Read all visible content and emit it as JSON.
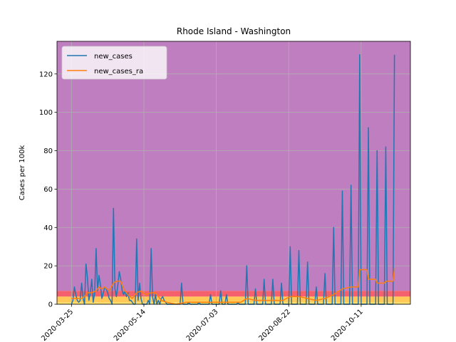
{
  "chart_data": {
    "type": "line",
    "title": "Rhode Island - Washington",
    "xlabel": "",
    "ylabel": "Cases per 100k",
    "x_type": "date",
    "xlim": [
      "2020-03-15",
      "2020-11-14"
    ],
    "ylim": [
      0,
      137
    ],
    "y_ticks": [
      0,
      20,
      40,
      60,
      80,
      100,
      120
    ],
    "x_ticks": [
      "2020-03-25",
      "2020-05-14",
      "2020-07-03",
      "2020-08-22",
      "2020-10-11"
    ],
    "grid": true,
    "legend_position": "top-left",
    "bands": [
      {
        "from": 0,
        "to": 1,
        "color": "#ffe066"
      },
      {
        "from": 1,
        "to": 4,
        "color": "#ffc857"
      },
      {
        "from": 4,
        "to": 7,
        "color": "#f4606c"
      },
      {
        "from": 7,
        "to": 137,
        "color": "#bf7ebf"
      }
    ],
    "series": [
      {
        "name": "new_cases",
        "color": "#1f77b4",
        "points": [
          [
            "2020-03-25",
            0
          ],
          [
            "2020-03-26",
            2
          ],
          [
            "2020-03-27",
            9
          ],
          [
            "2020-03-28",
            5
          ],
          [
            "2020-03-29",
            2
          ],
          [
            "2020-03-30",
            1
          ],
          [
            "2020-03-31",
            2
          ],
          [
            "2020-04-01",
            11
          ],
          [
            "2020-04-02",
            3
          ],
          [
            "2020-04-03",
            0
          ],
          [
            "2020-04-04",
            21
          ],
          [
            "2020-04-05",
            14
          ],
          [
            "2020-04-06",
            2
          ],
          [
            "2020-04-07",
            6
          ],
          [
            "2020-04-08",
            13
          ],
          [
            "2020-04-09",
            1
          ],
          [
            "2020-04-10",
            6
          ],
          [
            "2020-04-11",
            29
          ],
          [
            "2020-04-12",
            7
          ],
          [
            "2020-04-13",
            15
          ],
          [
            "2020-04-14",
            10
          ],
          [
            "2020-04-15",
            3
          ],
          [
            "2020-04-16",
            6
          ],
          [
            "2020-04-17",
            9
          ],
          [
            "2020-04-18",
            8
          ],
          [
            "2020-04-19",
            6
          ],
          [
            "2020-04-20",
            3
          ],
          [
            "2020-04-21",
            2
          ],
          [
            "2020-04-22",
            0
          ],
          [
            "2020-04-23",
            50
          ],
          [
            "2020-04-24",
            8
          ],
          [
            "2020-04-25",
            4
          ],
          [
            "2020-04-26",
            10
          ],
          [
            "2020-04-27",
            17
          ],
          [
            "2020-04-28",
            13
          ],
          [
            "2020-04-29",
            7
          ],
          [
            "2020-04-30",
            5
          ],
          [
            "2020-05-01",
            7
          ],
          [
            "2020-05-02",
            4
          ],
          [
            "2020-05-03",
            6
          ],
          [
            "2020-05-04",
            2
          ],
          [
            "2020-05-05",
            2
          ],
          [
            "2020-05-06",
            1
          ],
          [
            "2020-05-07",
            0
          ],
          [
            "2020-05-08",
            0
          ],
          [
            "2020-05-09",
            34
          ],
          [
            "2020-05-10",
            2
          ],
          [
            "2020-05-11",
            11
          ],
          [
            "2020-05-12",
            3
          ],
          [
            "2020-05-13",
            0
          ],
          [
            "2020-05-14",
            0
          ],
          [
            "2020-05-15",
            0
          ],
          [
            "2020-05-16",
            0
          ],
          [
            "2020-05-17",
            2
          ],
          [
            "2020-05-18",
            0
          ],
          [
            "2020-05-19",
            29
          ],
          [
            "2020-05-20",
            4
          ],
          [
            "2020-05-21",
            0
          ],
          [
            "2020-05-22",
            5
          ],
          [
            "2020-05-23",
            0
          ],
          [
            "2020-05-24",
            2
          ],
          [
            "2020-05-25",
            0
          ],
          [
            "2020-05-26",
            3
          ],
          [
            "2020-05-27",
            4
          ],
          [
            "2020-05-28",
            2
          ],
          [
            "2020-05-29",
            1
          ],
          [
            "2020-05-30",
            0
          ],
          [
            "2020-05-31",
            0
          ],
          [
            "2020-06-01",
            0
          ],
          [
            "2020-06-02",
            0
          ],
          [
            "2020-06-08",
            0
          ],
          [
            "2020-06-09",
            11
          ],
          [
            "2020-06-10",
            0
          ],
          [
            "2020-06-13",
            0
          ],
          [
            "2020-06-14",
            1
          ],
          [
            "2020-06-15",
            0
          ],
          [
            "2020-06-20",
            0
          ],
          [
            "2020-06-21",
            1
          ],
          [
            "2020-06-22",
            0
          ],
          [
            "2020-06-28",
            0
          ],
          [
            "2020-06-29",
            5
          ],
          [
            "2020-06-30",
            0
          ],
          [
            "2020-07-05",
            0
          ],
          [
            "2020-07-06",
            7
          ],
          [
            "2020-07-07",
            0
          ],
          [
            "2020-07-09",
            0
          ],
          [
            "2020-07-10",
            5
          ],
          [
            "2020-07-11",
            0
          ],
          [
            "2020-07-17",
            0
          ],
          [
            "2020-07-18",
            1
          ],
          [
            "2020-07-19",
            0
          ],
          [
            "2020-07-23",
            0
          ],
          [
            "2020-07-24",
            20
          ],
          [
            "2020-07-25",
            0
          ],
          [
            "2020-07-29",
            0
          ],
          [
            "2020-07-30",
            8
          ],
          [
            "2020-07-31",
            0
          ],
          [
            "2020-08-04",
            0
          ],
          [
            "2020-08-05",
            13
          ],
          [
            "2020-08-06",
            0
          ],
          [
            "2020-08-10",
            0
          ],
          [
            "2020-08-11",
            13
          ],
          [
            "2020-08-12",
            0
          ],
          [
            "2020-08-16",
            0
          ],
          [
            "2020-08-17",
            11
          ],
          [
            "2020-08-18",
            0
          ],
          [
            "2020-08-22",
            0
          ],
          [
            "2020-08-23",
            30
          ],
          [
            "2020-08-24",
            0
          ],
          [
            "2020-08-28",
            0
          ],
          [
            "2020-08-29",
            28
          ],
          [
            "2020-08-30",
            0
          ],
          [
            "2020-09-03",
            0
          ],
          [
            "2020-09-04",
            22
          ],
          [
            "2020-09-05",
            0
          ],
          [
            "2020-09-09",
            0
          ],
          [
            "2020-09-10",
            9
          ],
          [
            "2020-09-11",
            0
          ],
          [
            "2020-09-15",
            0
          ],
          [
            "2020-09-16",
            16
          ],
          [
            "2020-09-17",
            0
          ],
          [
            "2020-09-21",
            0
          ],
          [
            "2020-09-22",
            40
          ],
          [
            "2020-09-23",
            0
          ],
          [
            "2020-09-27",
            0
          ],
          [
            "2020-09-28",
            59
          ],
          [
            "2020-09-29",
            0
          ],
          [
            "2020-10-03",
            0
          ],
          [
            "2020-10-04",
            62
          ],
          [
            "2020-10-05",
            0
          ],
          [
            "2020-10-09",
            0
          ],
          [
            "2020-10-10",
            130
          ],
          [
            "2020-10-11",
            0
          ],
          [
            "2020-10-15",
            0
          ],
          [
            "2020-10-16",
            92
          ],
          [
            "2020-10-17",
            0
          ],
          [
            "2020-10-21",
            0
          ],
          [
            "2020-10-22",
            80
          ],
          [
            "2020-10-23",
            0
          ],
          [
            "2020-10-27",
            0
          ],
          [
            "2020-10-28",
            82
          ],
          [
            "2020-10-29",
            0
          ],
          [
            "2020-11-02",
            0
          ],
          [
            "2020-11-03",
            130
          ]
        ]
      },
      {
        "name": "new_cases_ra",
        "color": "#ff7f0e",
        "points": [
          [
            "2020-03-25",
            3
          ],
          [
            "2020-04-01",
            3
          ],
          [
            "2020-04-03",
            4
          ],
          [
            "2020-04-05",
            6
          ],
          [
            "2020-04-08",
            6
          ],
          [
            "2020-04-11",
            7
          ],
          [
            "2020-04-13",
            9
          ],
          [
            "2020-04-15",
            8
          ],
          [
            "2020-04-17",
            9
          ],
          [
            "2020-04-20",
            7
          ],
          [
            "2020-04-23",
            11
          ],
          [
            "2020-04-25",
            12
          ],
          [
            "2020-04-28",
            12
          ],
          [
            "2020-04-30",
            8
          ],
          [
            "2020-05-03",
            5
          ],
          [
            "2020-05-06",
            3
          ],
          [
            "2020-05-09",
            6
          ],
          [
            "2020-05-12",
            7
          ],
          [
            "2020-05-15",
            5
          ],
          [
            "2020-05-19",
            6
          ],
          [
            "2020-05-22",
            6
          ],
          [
            "2020-05-26",
            2
          ],
          [
            "2020-05-30",
            1
          ],
          [
            "2020-06-05",
            0
          ],
          [
            "2020-06-12",
            1
          ],
          [
            "2020-06-18",
            1
          ],
          [
            "2020-06-24",
            1
          ],
          [
            "2020-07-01",
            1
          ],
          [
            "2020-07-06",
            1
          ],
          [
            "2020-07-12",
            1
          ],
          [
            "2020-07-20",
            1
          ],
          [
            "2020-07-24",
            3
          ],
          [
            "2020-07-30",
            2
          ],
          [
            "2020-08-05",
            2
          ],
          [
            "2020-08-11",
            2
          ],
          [
            "2020-08-18",
            2
          ],
          [
            "2020-08-23",
            4
          ],
          [
            "2020-08-29",
            4
          ],
          [
            "2020-09-04",
            3
          ],
          [
            "2020-09-10",
            2
          ],
          [
            "2020-09-16",
            3
          ],
          [
            "2020-09-22",
            5
          ],
          [
            "2020-09-28",
            8
          ],
          [
            "2020-10-04",
            9
          ],
          [
            "2020-10-09",
            9
          ],
          [
            "2020-10-10",
            18
          ],
          [
            "2020-10-15",
            18
          ],
          [
            "2020-10-16",
            13
          ],
          [
            "2020-10-21",
            13
          ],
          [
            "2020-10-22",
            11
          ],
          [
            "2020-10-27",
            11
          ],
          [
            "2020-10-28",
            12
          ],
          [
            "2020-11-02",
            12
          ],
          [
            "2020-11-03",
            19
          ]
        ]
      }
    ]
  }
}
